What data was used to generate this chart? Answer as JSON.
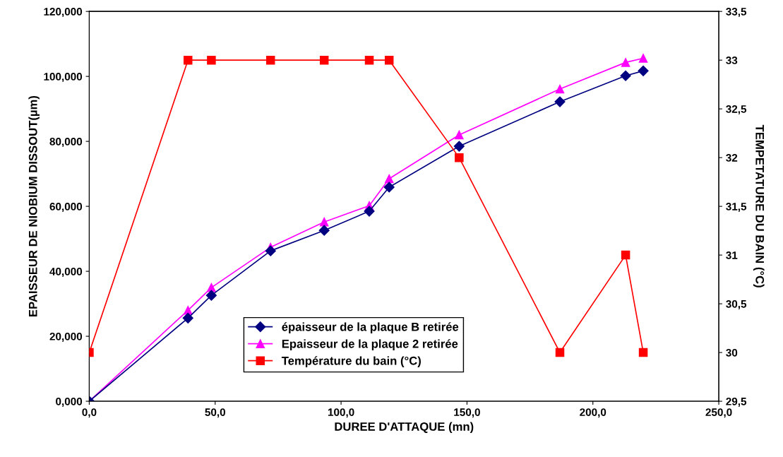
{
  "chart_data": {
    "type": "line",
    "xlabel": "DUREE D'ATTAQUE (mn)",
    "ylabel": "EPAISSEUR DE NIOBIUM DISSOUT(µm)",
    "y2label": "TEMPETATURE DU BAIN (°C)",
    "x": [
      0,
      39.2,
      48.5,
      72.0,
      93.3,
      111.2,
      119.1,
      146.9,
      186.9,
      213.0,
      220.0
    ],
    "series": [
      {
        "name": "épaisseur de la plaque B retirée",
        "color": "#000080",
        "marker": "diamond",
        "values": [
          0,
          25.6,
          32.6,
          46.3,
          52.6,
          58.5,
          65.9,
          78.5,
          92.2,
          100.2,
          101.7
        ]
      },
      {
        "name": "Epaisseur de la plaque 2 retirée",
        "color": "#ff00ff",
        "marker": "triangle",
        "values": [
          0,
          28.0,
          35.0,
          47.4,
          55.2,
          60.2,
          68.5,
          82.0,
          96.1,
          104.3,
          105.6
        ]
      },
      {
        "name": "Température du bain (°C)",
        "color": "#ff0000",
        "marker": "square",
        "axis": "y2",
        "values": [
          30,
          33,
          33,
          33,
          33,
          33,
          33,
          32,
          30,
          31,
          30
        ]
      }
    ],
    "xlim": [
      0,
      250
    ],
    "xticks": [
      {
        "value": 0,
        "label": "0,0"
      },
      {
        "value": 50,
        "label": "50,0"
      },
      {
        "value": 100,
        "label": "100,0"
      },
      {
        "value": 150,
        "label": "150,0"
      },
      {
        "value": 200,
        "label": "200,0"
      },
      {
        "value": 250,
        "label": "250,0"
      }
    ],
    "ylim": [
      0,
      120
    ],
    "yticks": [
      {
        "value": 0,
        "label": "0,000"
      },
      {
        "value": 20,
        "label": "20,000"
      },
      {
        "value": 40,
        "label": "40,000"
      },
      {
        "value": 60,
        "label": "60,000"
      },
      {
        "value": 80,
        "label": "80,000"
      },
      {
        "value": 100,
        "label": "100,000"
      },
      {
        "value": 120,
        "label": "120,000"
      }
    ],
    "y2lim": [
      29.5,
      33.5
    ],
    "y2ticks": [
      {
        "value": 29.5,
        "label": "29,5"
      },
      30,
      {
        "value": 30.5,
        "label": "30,5"
      },
      31,
      {
        "value": 31.5,
        "label": "31,5"
      },
      32,
      {
        "value": 32.5,
        "label": "32,5"
      },
      33,
      {
        "value": 33.5,
        "label": "33,5"
      }
    ],
    "grid": false,
    "legend": "bottom",
    "line_style": "solid"
  }
}
